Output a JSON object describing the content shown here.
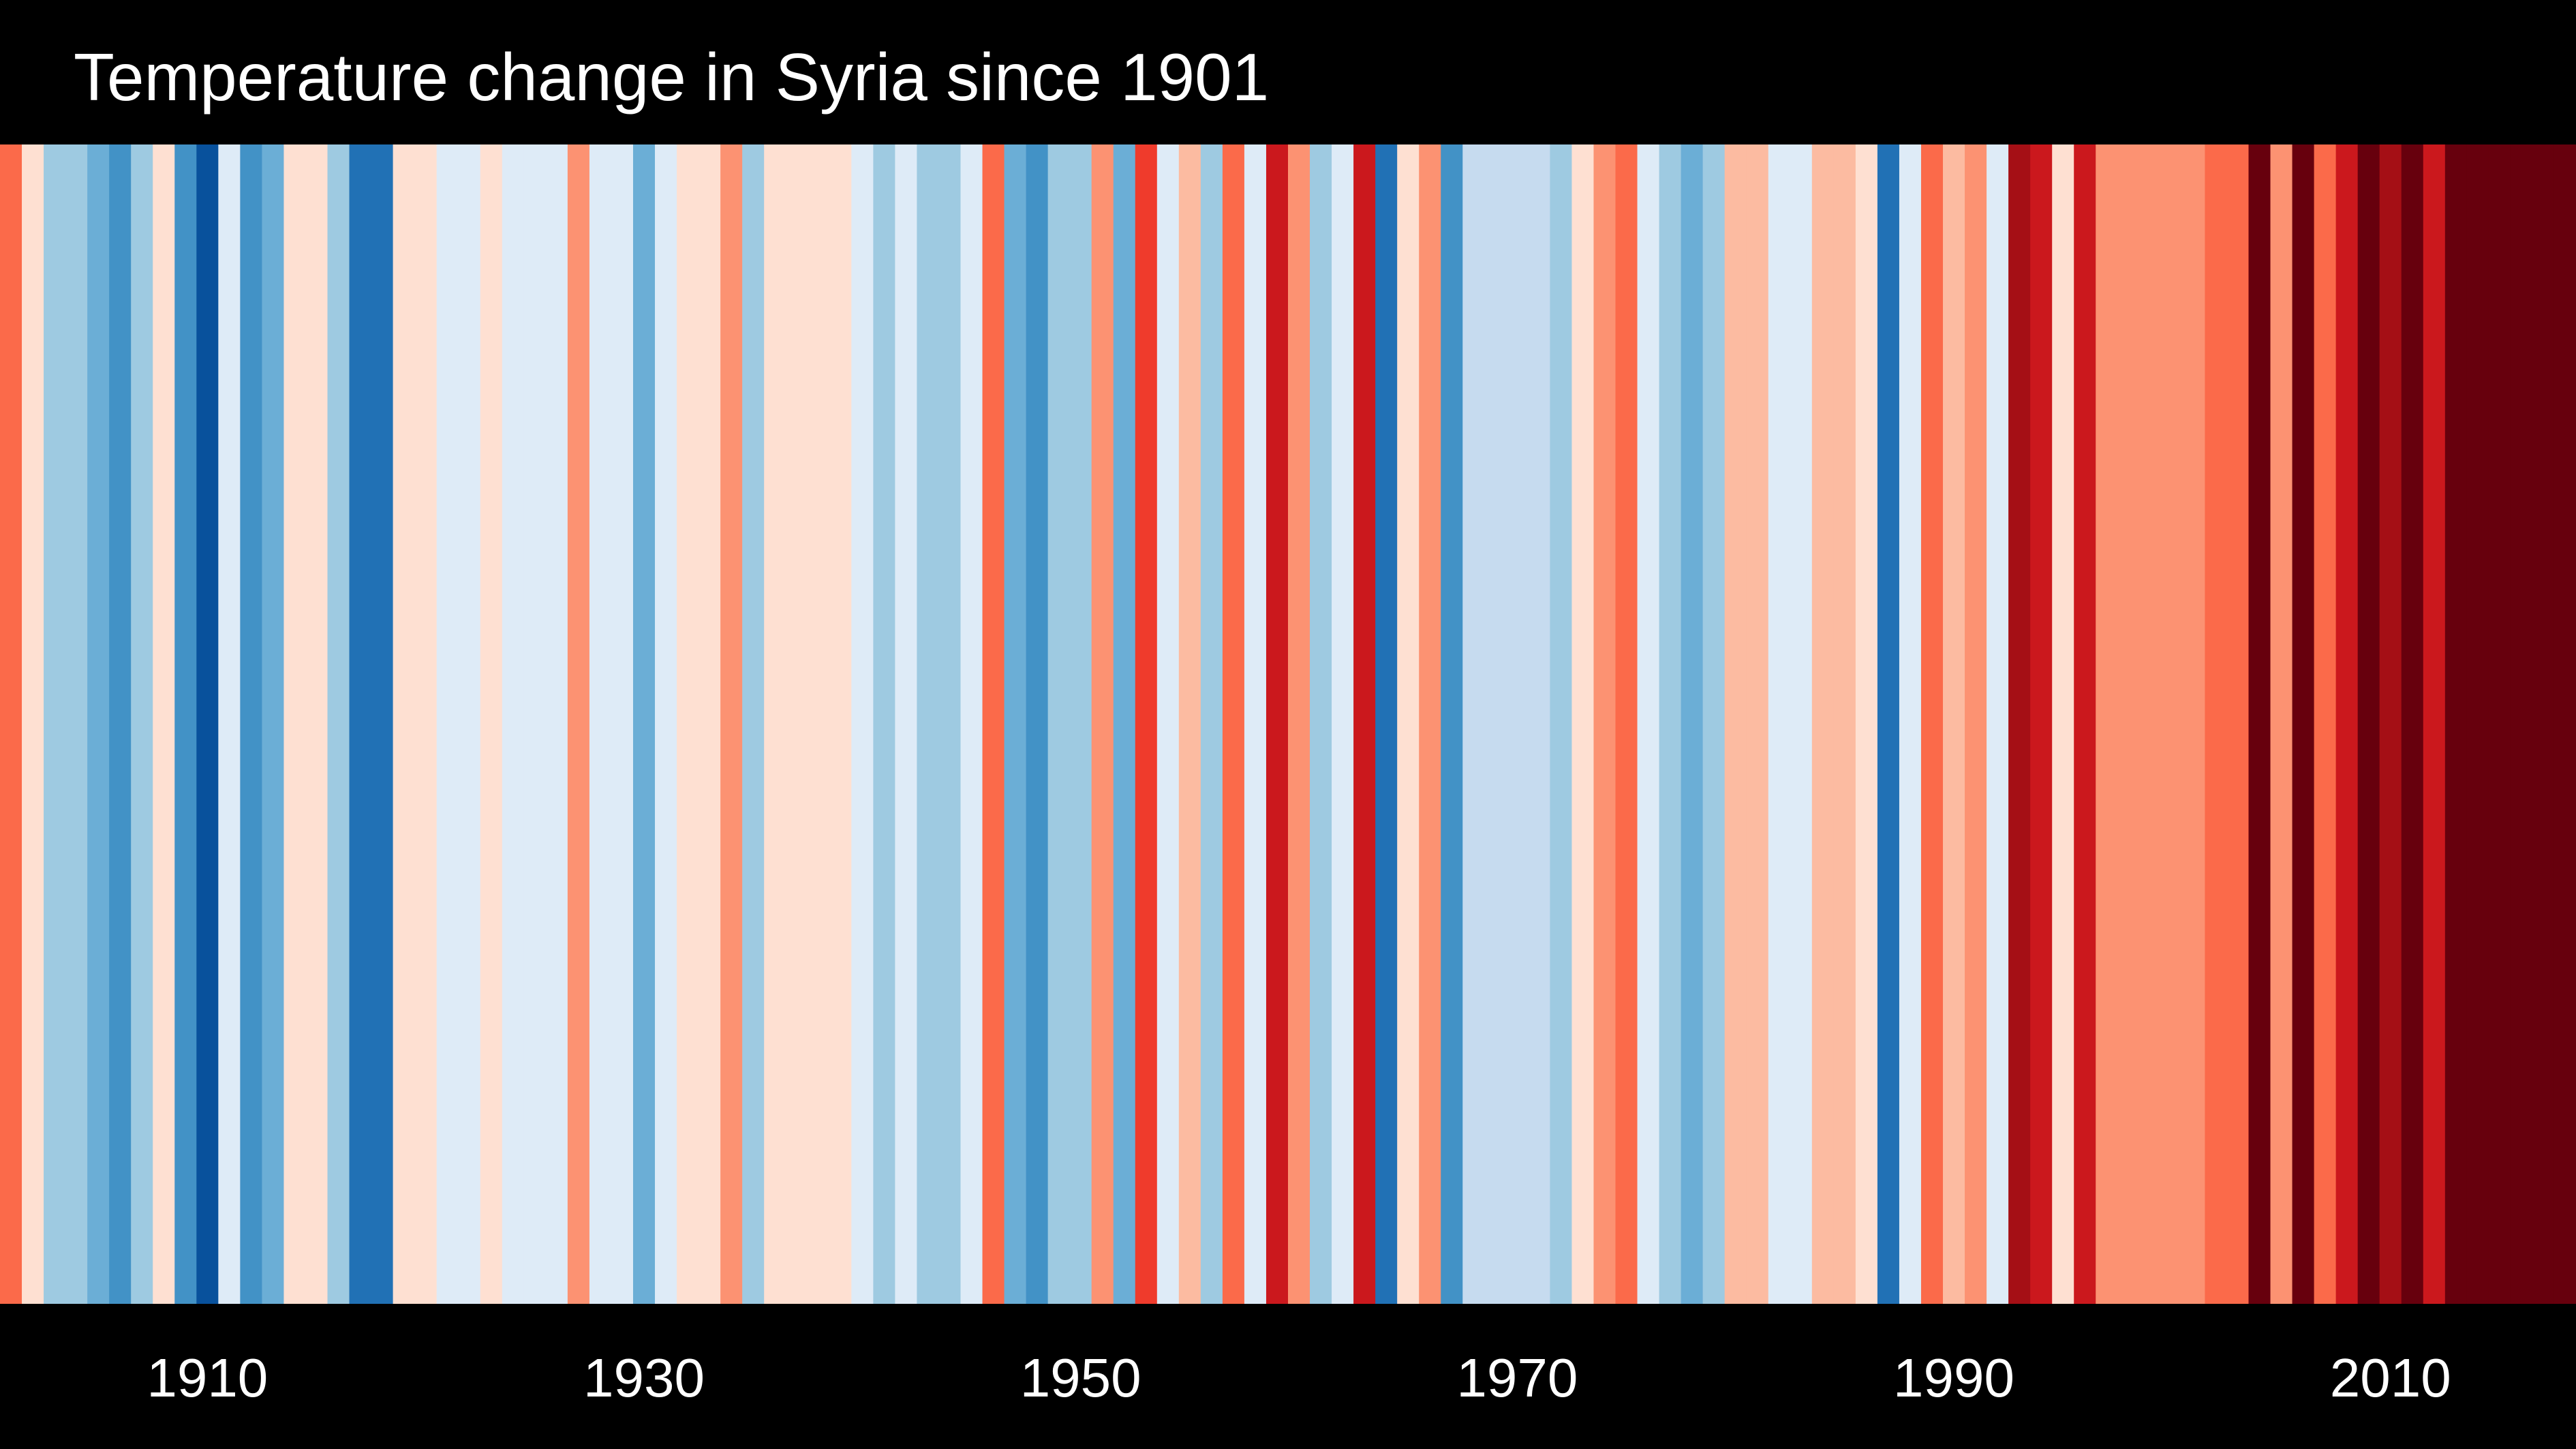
{
  "chart_data": {
    "type": "heatmap",
    "title": "Temperature change in Syria since 1901",
    "x_start": 1901,
    "x_end": 2018,
    "x_ticks": [
      "1910",
      "1930",
      "1950",
      "1970",
      "1990",
      "2010"
    ],
    "series": [
      {
        "values": [
          1.3,
          0.2,
          -1.2,
          -1.2,
          -1.5,
          -1.9,
          -1.2,
          0.1,
          -1.8,
          -2.8,
          -0.4,
          -1.9,
          -1.5,
          0.2,
          0.2,
          -0.9,
          -2.3,
          -2.3,
          0.2,
          0.2,
          -0.4,
          -0.3,
          0.2,
          -0.2,
          -0.2,
          -0.2,
          1.0,
          -0.2,
          -0.3,
          -1.5,
          -0.3,
          0.4,
          0.2,
          0.9,
          -0.9,
          0.2,
          0.2,
          0.2,
          0.2,
          -0.2,
          -0.9,
          -0.4,
          -0.9,
          -1.2,
          -0.2,
          1.6,
          -1.5,
          -1.9,
          -1.2,
          -0.9,
          1.0,
          -1.5,
          2.1,
          -0.4,
          0.6,
          -1.2,
          1.6,
          -0.2,
          2.3,
          1.0,
          -1.2,
          -0.2,
          2.3,
          -2.3,
          0.3,
          0.9,
          -1.9,
          -0.6,
          -0.6,
          -0.6,
          -0.6,
          -1.2,
          0.3,
          0.9,
          1.6,
          -0.2,
          -1.2,
          -1.5,
          -1.2,
          0.6,
          0.6,
          -0.2,
          -0.2,
          0.6,
          0.6,
          0.2,
          -2.3,
          -0.2,
          1.6,
          0.6,
          1.0,
          -0.4,
          2.6,
          2.3,
          0.3,
          2.3,
          1.0,
          1.0,
          1.0,
          1.0,
          1.0,
          1.6,
          1.6,
          3.2,
          0.9,
          3.2,
          1.6,
          2.3,
          3.2,
          2.6,
          3.2,
          2.3,
          3.4,
          3.4,
          3.4,
          3.4,
          3.4,
          3.4
        ]
      }
    ],
    "color_scale": [
      "#08306b",
      "#08519c",
      "#2171b5",
      "#4292c6",
      "#6baed6",
      "#9ecae1",
      "#c6dbef",
      "#deebf7",
      "#fee0d2",
      "#fcbba1",
      "#fc9272",
      "#fb6a4a",
      "#ef3b2c",
      "#cb181d",
      "#a50f15",
      "#67000d"
    ],
    "value_range": [
      -3.4,
      3.4
    ],
    "legend": "none",
    "grid": false,
    "colors": {
      "background": "#000000",
      "text": "#ffffff"
    }
  }
}
